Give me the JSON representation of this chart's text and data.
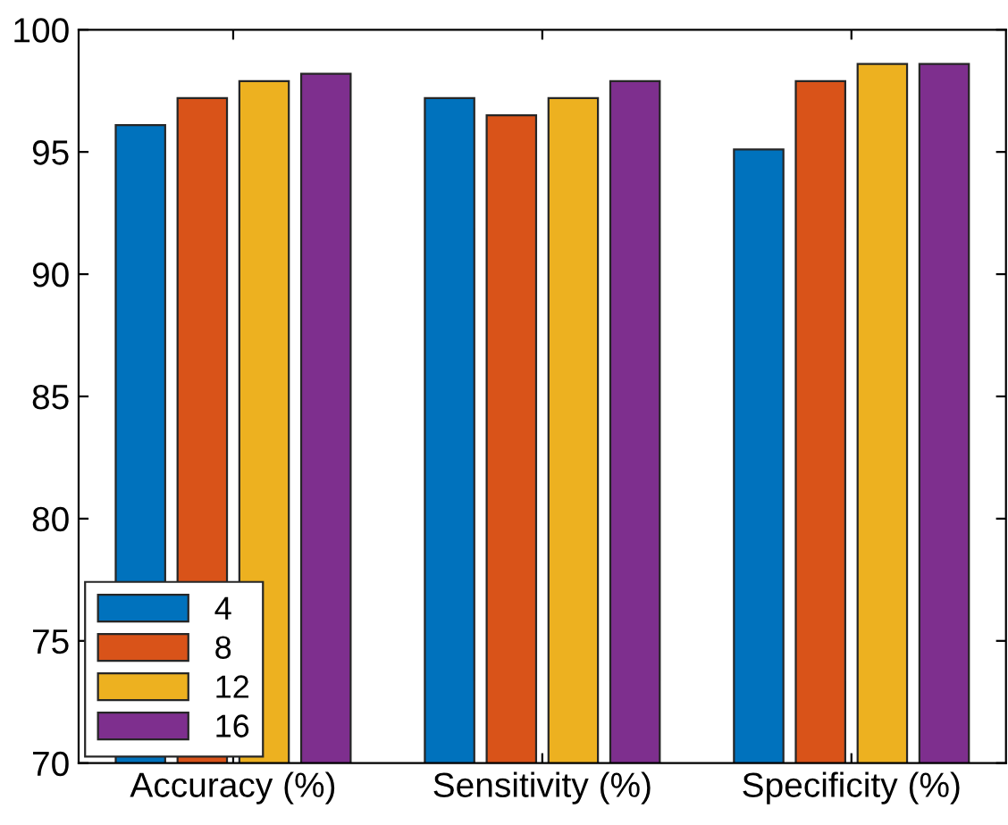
{
  "chart_data": {
    "type": "bar",
    "categories": [
      "Accuracy (%)",
      "Sensitivity (%)",
      "Specificity (%)"
    ],
    "series": [
      {
        "name": "4",
        "color": "#0072bd",
        "values": [
          96.1,
          97.2,
          95.1
        ]
      },
      {
        "name": "8",
        "color": "#d95319",
        "values": [
          97.2,
          96.5,
          97.9
        ]
      },
      {
        "name": "12",
        "color": "#edb120",
        "values": [
          97.9,
          97.2,
          98.6
        ]
      },
      {
        "name": "16",
        "color": "#7e2f8e",
        "values": [
          98.2,
          97.9,
          98.6
        ]
      }
    ],
    "ylim": [
      70,
      100
    ],
    "yticks": [
      70,
      75,
      80,
      85,
      90,
      95,
      100
    ],
    "grid": false,
    "legend": "bottom left"
  }
}
